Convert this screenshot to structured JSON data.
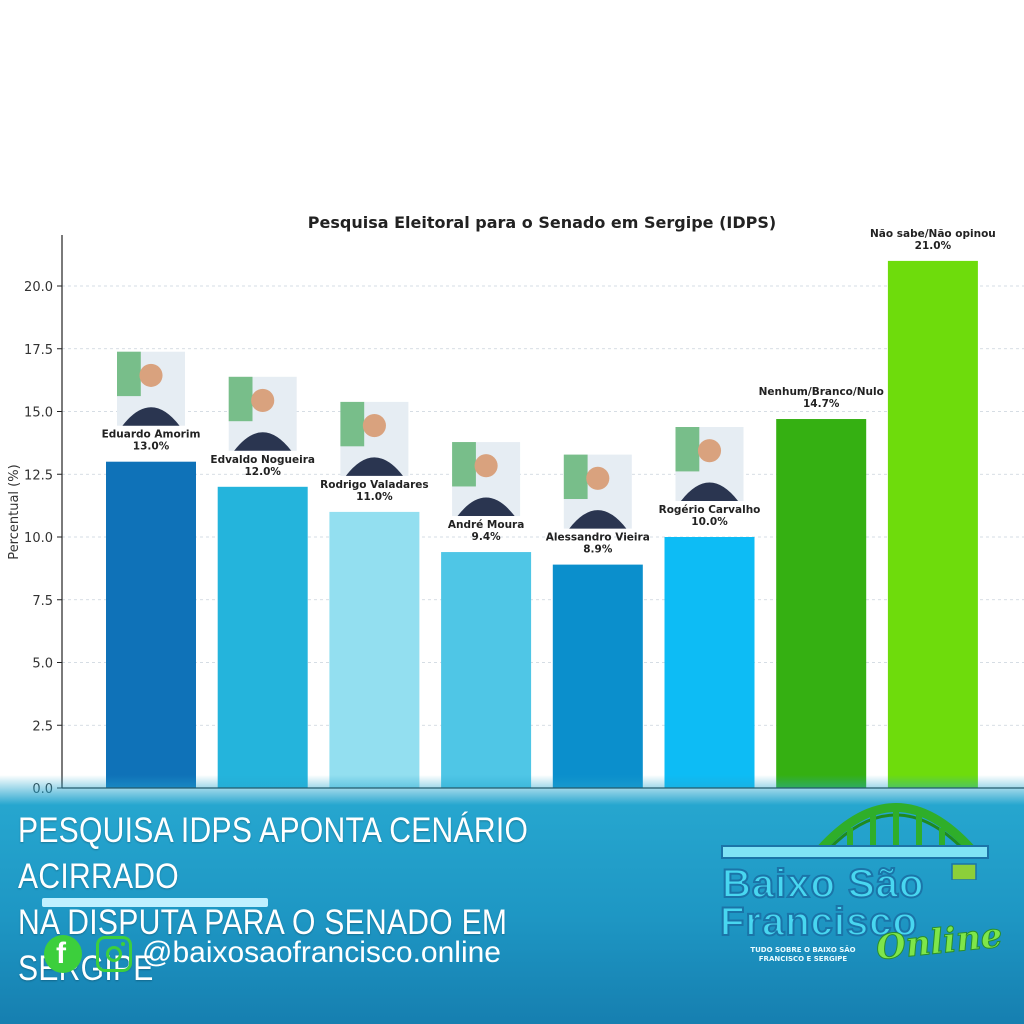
{
  "chart_data": {
    "type": "bar",
    "title": "Pesquisa Eleitoral para o Senado em Sergipe (IDPS)",
    "xlabel": "",
    "ylabel": "Percentual (%)",
    "ylim": [
      0,
      22
    ],
    "yticks": [
      "0.0",
      "2.5",
      "5.0",
      "7.5",
      "10.0",
      "12.5",
      "15.0",
      "17.5",
      "20.0"
    ],
    "yticks_values": [
      0,
      2.5,
      5,
      7.5,
      10,
      12.5,
      15,
      17.5,
      20
    ],
    "grid": "horizontal dashed",
    "categories": [
      "Eduardo Amorim",
      "Edvaldo Nogueira",
      "Rodrigo Valadares",
      "André Moura",
      "Alessandro Vieira",
      "Rogério Carvalho",
      "Nenhum/Branco/Nulo",
      "Não sabe/Não opinou"
    ],
    "values": [
      13.0,
      12.0,
      11.0,
      9.4,
      8.9,
      10.0,
      14.7,
      21.0
    ],
    "value_labels": [
      "13.0%",
      "12.0%",
      "11.0%",
      "9.4%",
      "8.9%",
      "10.0%",
      "14.7%",
      "21.0%"
    ],
    "colors": [
      "#0f72b8",
      "#24b4dc",
      "#93dff0",
      "#4fc6e6",
      "#0b8fcc",
      "#0dbcf5",
      "#35b012",
      "#6edc0c"
    ],
    "has_photo": [
      true,
      true,
      true,
      true,
      true,
      true,
      false,
      false
    ]
  },
  "banner": {
    "headline_line1": "PESQUISA IDPS APONTA CENÁRIO ACIRRADO",
    "headline_line2": "NA DISPUTA PARA O SENADO EM SERGIPE",
    "facebook_icon": "facebook-icon",
    "facebook_glyph": "f",
    "instagram_icon": "instagram-icon",
    "handle": "@baixosaofrancisco.online"
  },
  "logo": {
    "word1": "Baixo São",
    "word2": "Francisco",
    "online": "Online",
    "tagline": "TUDO SOBRE O BAIXO SÃO FRANCISCO E SERGIPE"
  }
}
